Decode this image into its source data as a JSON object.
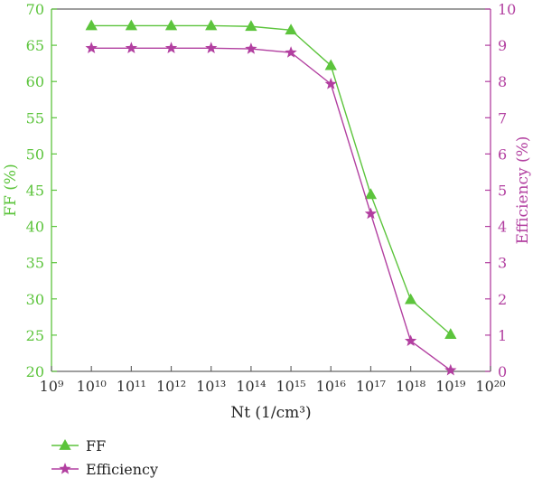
{
  "chart_data": {
    "type": "line",
    "xlabel": "Nt (1/cm³)",
    "x_scale": "log",
    "xlim": [
      1000000000.0,
      1e+20
    ],
    "x_tick_labels": [
      "10⁹",
      "10¹⁰",
      "10¹¹",
      "10¹²",
      "10¹³",
      "10¹⁴",
      "10¹⁵",
      "10¹⁶",
      "10¹⁷",
      "10¹⁸",
      "10¹⁹",
      "10²⁰"
    ],
    "x": [
      10000000000.0,
      100000000000.0,
      1000000000000.0,
      10000000000000.0,
      100000000000000.0,
      1000000000000000.0,
      1e+16,
      1e+17,
      1e+18,
      1e+19
    ],
    "y_left": {
      "label": "FF (%)",
      "lim": [
        20,
        70
      ],
      "ticks": [
        20,
        25,
        30,
        35,
        40,
        45,
        50,
        55,
        60,
        65,
        70
      ],
      "color": "#5cc43c"
    },
    "y_right": {
      "label": "Efficiency (%)",
      "lim": [
        0,
        10
      ],
      "ticks": [
        0,
        1,
        2,
        3,
        4,
        5,
        6,
        7,
        8,
        9,
        10
      ],
      "color": "#b23fa0"
    },
    "series": [
      {
        "name": "FF",
        "axis": "left",
        "marker": "triangle",
        "color": "#5cc43c",
        "values": [
          67.7,
          67.7,
          67.7,
          67.7,
          67.6,
          67.1,
          62.2,
          44.4,
          29.9,
          25.1
        ]
      },
      {
        "name": "Efficiency",
        "axis": "right",
        "marker": "star",
        "color": "#b23fa0",
        "values": [
          8.92,
          8.92,
          8.92,
          8.92,
          8.9,
          8.8,
          7.93,
          4.35,
          0.84,
          0.03
        ]
      }
    ],
    "legend_placement": "bottom-left",
    "grid": false
  }
}
